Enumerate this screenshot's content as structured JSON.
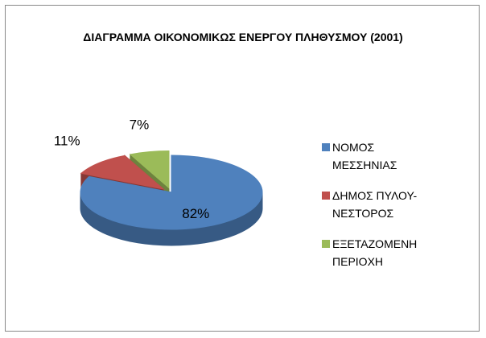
{
  "chart_data": {
    "type": "pie",
    "title": "ΔΙΑΓΡΑΜΜΑ ΟΙΚΟΝΟΜΙΚΩΣ ΕΝΕΡΓΟΥ ΠΛΗΘΥΣΜΟΥ (2001)",
    "categories": [
      "ΝΟΜΟΣ ΜΕΣΣΗΝΙΑΣ",
      "ΔΗΜΟΣ ΠΥΛΟΥ-ΝΕΣΤΟΡΟΣ",
      "ΕΞΕΤΑΖΟΜΕΝΗ ΠΕΡΙΟΧΗ"
    ],
    "values": [
      82,
      11,
      7
    ],
    "value_labels": [
      "82%",
      "11%",
      "7%"
    ],
    "colors": [
      "#4f81bd",
      "#c0504d",
      "#9bbb59"
    ],
    "legend": "right"
  }
}
